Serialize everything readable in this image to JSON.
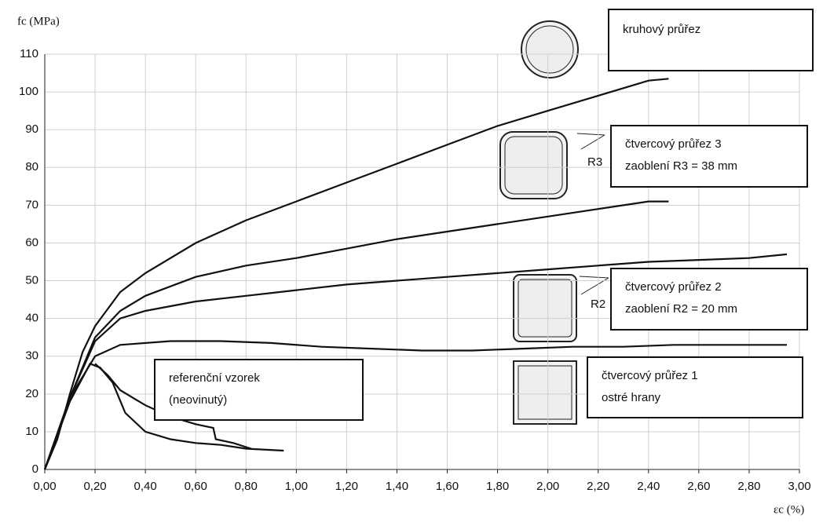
{
  "chart_data": {
    "type": "line",
    "ylabel": "fc (MPa)",
    "xlabel": "εc (%)",
    "xlim": [
      0,
      3
    ],
    "ylim": [
      0,
      110
    ],
    "xticks": [
      {
        "value": 0,
        "label": "0,00"
      },
      {
        "value": 0.2,
        "label": "0,20"
      },
      {
        "value": 0.4,
        "label": "0,40"
      },
      {
        "value": 0.6,
        "label": "0,60"
      },
      {
        "value": 0.8,
        "label": "0,80"
      },
      {
        "value": 1.0,
        "label": "1,00"
      },
      {
        "value": 1.2,
        "label": "1,20"
      },
      {
        "value": 1.4,
        "label": "1,40"
      },
      {
        "value": 1.6,
        "label": "1,60"
      },
      {
        "value": 1.8,
        "label": "1,80"
      },
      {
        "value": 2.0,
        "label": "2,00"
      },
      {
        "value": 2.2,
        "label": "2,20"
      },
      {
        "value": 2.4,
        "label": "2,40"
      },
      {
        "value": 2.6,
        "label": "2,60"
      },
      {
        "value": 2.8,
        "label": "2,80"
      },
      {
        "value": 3.0,
        "label": "3,00"
      }
    ],
    "yticks": [
      0,
      10,
      20,
      30,
      40,
      50,
      60,
      70,
      80,
      90,
      100,
      110
    ],
    "grid": true,
    "series": [
      {
        "color": "#111111",
        "x": [
          0,
          0.05,
          0.1,
          0.15,
          0.2,
          0.3,
          0.4,
          0.6,
          0.8,
          1.0,
          1.2,
          1.4,
          1.6,
          1.8,
          2.0,
          2.2,
          2.4,
          2.48
        ],
        "values": [
          0,
          8,
          20,
          31,
          38,
          47,
          52,
          60,
          66,
          71,
          76,
          81,
          86,
          91,
          95,
          99,
          103,
          103.5
        ]
      },
      {
        "color": "#111111",
        "x": [
          0,
          0.1,
          0.2,
          0.3,
          0.4,
          0.6,
          0.8,
          1.0,
          1.2,
          1.4,
          1.6,
          1.8,
          2.0,
          2.2,
          2.4,
          2.48
        ],
        "values": [
          0,
          19,
          35,
          42,
          46,
          51,
          54,
          56,
          58.5,
          61,
          63,
          65,
          67,
          69,
          71,
          71
        ]
      },
      {
        "color": "#111111",
        "x": [
          0,
          0.1,
          0.2,
          0.3,
          0.4,
          0.6,
          0.8,
          1.0,
          1.2,
          1.4,
          1.6,
          1.8,
          2.0,
          2.2,
          2.4,
          2.6,
          2.8,
          2.95
        ],
        "values": [
          0,
          19,
          34,
          40,
          42,
          44.5,
          46,
          47.5,
          49,
          50,
          51,
          52,
          53,
          54,
          55,
          55.5,
          56,
          57
        ]
      },
      {
        "color": "#111111",
        "x": [
          0,
          0.1,
          0.2,
          0.3,
          0.5,
          0.7,
          0.9,
          1.1,
          1.3,
          1.5,
          1.7,
          1.9,
          2.1,
          2.3,
          2.5,
          2.7,
          2.95
        ],
        "values": [
          0,
          19,
          30,
          33,
          34,
          34,
          33.5,
          32.5,
          32,
          31.5,
          31.5,
          32,
          32.5,
          32.5,
          33,
          33,
          33
        ]
      },
      {
        "color": "#111111",
        "x": [
          0,
          0.1,
          0.18,
          0.22,
          0.27,
          0.32,
          0.4,
          0.5,
          0.6,
          0.7,
          0.8,
          0.95
        ],
        "values": [
          0,
          18,
          28,
          27,
          23,
          15,
          10,
          8,
          7,
          6.5,
          5.5,
          5
        ]
      },
      {
        "color": "#111111",
        "x": [
          0.2,
          0.25,
          0.3,
          0.4,
          0.5,
          0.6,
          0.67,
          0.68,
          0.75,
          0.82
        ],
        "values": [
          28,
          25,
          21,
          17,
          14,
          12,
          11,
          8,
          7,
          5.5
        ]
      }
    ],
    "annotations": [
      {
        "lines": [
          "kruhový průřez"
        ]
      },
      {
        "lines": [
          "čtvercový průřez 3",
          "zaoblení R3 = 38 mm"
        ]
      },
      {
        "lines": [
          "čtvercový průřez 2",
          "zaoblení R2 = 20 mm"
        ]
      },
      {
        "lines": [
          "čtvercový průřez 1",
          "ostré hrany"
        ]
      },
      {
        "lines": [
          "referenční vzorek",
          "(neovinutý)"
        ]
      }
    ],
    "markers": [
      "R3",
      "R2"
    ]
  }
}
